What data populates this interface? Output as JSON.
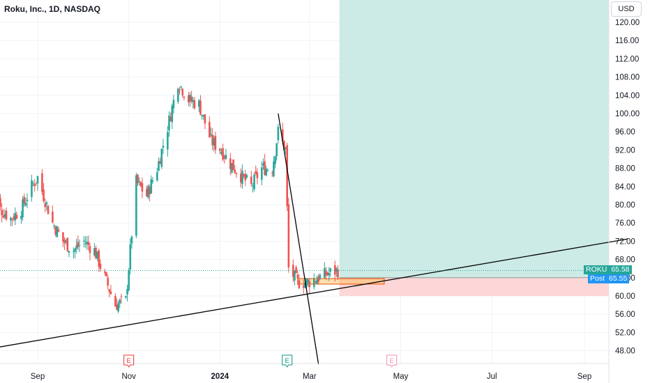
{
  "header": {
    "title": "Roku, Inc., 1D, NASDAQ",
    "currency": "USD"
  },
  "price_tags": [
    {
      "symbol": "ROKU",
      "value": "65.58",
      "color": "#26a69a"
    },
    {
      "symbol": "Post",
      "value": "65.55",
      "color": "#2196f3"
    }
  ],
  "earnings_markers": [
    {
      "label": "E",
      "date": "2023-11-01",
      "color": "#e53935"
    },
    {
      "label": "E",
      "date": "2024-02-15",
      "color": "#089981"
    },
    {
      "label": "E",
      "date": "2024-04-25",
      "color": "#f48fb1"
    }
  ],
  "colors": {
    "up": "#26a69a",
    "down": "#ef5350",
    "target_zone": "#cceae6",
    "stop_zone": "#fdd7d7",
    "trendline": "#000000",
    "grid": "#f0f3fa"
  },
  "chart_data": {
    "type": "candlestick",
    "title": "Roku, Inc., 1D, NASDAQ",
    "ylim": [
      44,
      122
    ],
    "y_ticks": [
      "120.00",
      "116.00",
      "112.00",
      "108.00",
      "104.00",
      "100.00",
      "96.00",
      "92.00",
      "88.00",
      "84.00",
      "80.00",
      "76.00",
      "72.00",
      "68.00",
      "64.00",
      "60.00",
      "56.00",
      "52.00",
      "48.00"
    ],
    "x_ticks": [
      "Sep",
      "Nov",
      "2024",
      "Mar",
      "May",
      "Jul",
      "Sep"
    ],
    "x_tick_dates": [
      "2023-09-01",
      "2023-11-01",
      "2024-01-01",
      "2024-03-01",
      "2024-05-01",
      "2024-07-01",
      "2024-09-01"
    ],
    "last_price": 65.58,
    "post_price": 65.55,
    "ohlc_close_path": [
      {
        "date": "2023-08-01",
        "close": 84
      },
      {
        "date": "2023-08-07",
        "close": 79
      },
      {
        "date": "2023-08-14",
        "close": 77
      },
      {
        "date": "2023-08-21",
        "close": 79
      },
      {
        "date": "2023-08-28",
        "close": 84
      },
      {
        "date": "2023-09-01",
        "close": 86
      },
      {
        "date": "2023-09-05",
        "close": 82
      },
      {
        "date": "2023-09-11",
        "close": 76
      },
      {
        "date": "2023-09-18",
        "close": 72
      },
      {
        "date": "2023-09-25",
        "close": 70
      },
      {
        "date": "2023-10-02",
        "close": 72
      },
      {
        "date": "2023-10-09",
        "close": 70
      },
      {
        "date": "2023-10-16",
        "close": 64
      },
      {
        "date": "2023-10-23",
        "close": 58
      },
      {
        "date": "2023-10-30",
        "close": 59
      },
      {
        "date": "2023-11-02",
        "close": 70
      },
      {
        "date": "2023-11-06",
        "close": 85
      },
      {
        "date": "2023-11-13",
        "close": 82
      },
      {
        "date": "2023-11-20",
        "close": 88
      },
      {
        "date": "2023-11-27",
        "close": 97
      },
      {
        "date": "2023-12-04",
        "close": 107
      },
      {
        "date": "2023-12-11",
        "close": 103
      },
      {
        "date": "2023-12-18",
        "close": 102
      },
      {
        "date": "2023-12-26",
        "close": 94
      },
      {
        "date": "2024-01-02",
        "close": 92
      },
      {
        "date": "2024-01-08",
        "close": 89
      },
      {
        "date": "2024-01-16",
        "close": 86
      },
      {
        "date": "2024-01-22",
        "close": 84
      },
      {
        "date": "2024-01-29",
        "close": 88
      },
      {
        "date": "2024-02-05",
        "close": 88
      },
      {
        "date": "2024-02-09",
        "close": 96
      },
      {
        "date": "2024-02-14",
        "close": 92
      },
      {
        "date": "2024-02-16",
        "close": 66
      },
      {
        "date": "2024-02-22",
        "close": 63
      },
      {
        "date": "2024-02-29",
        "close": 63
      },
      {
        "date": "2024-03-07",
        "close": 64
      },
      {
        "date": "2024-03-14",
        "close": 65
      },
      {
        "date": "2024-03-20",
        "close": 65.58
      }
    ],
    "annotations": {
      "rising_trendline": [
        {
          "date": "2023-08-01",
          "price": 48.5
        },
        {
          "date": "2024-09-30",
          "price": 72.5
        }
      ],
      "falling_trendline": [
        {
          "date": "2024-02-09",
          "price": 100
        },
        {
          "date": "2024-03-07",
          "price": 45
        }
      ],
      "long_position": {
        "start_date": "2024-03-21",
        "entry": 64.0,
        "target": 122,
        "stop": 60.0
      },
      "support_box": {
        "start": "2024-02-22",
        "end": "2024-04-20",
        "top": 63.8,
        "bottom": 62.6
      }
    }
  }
}
